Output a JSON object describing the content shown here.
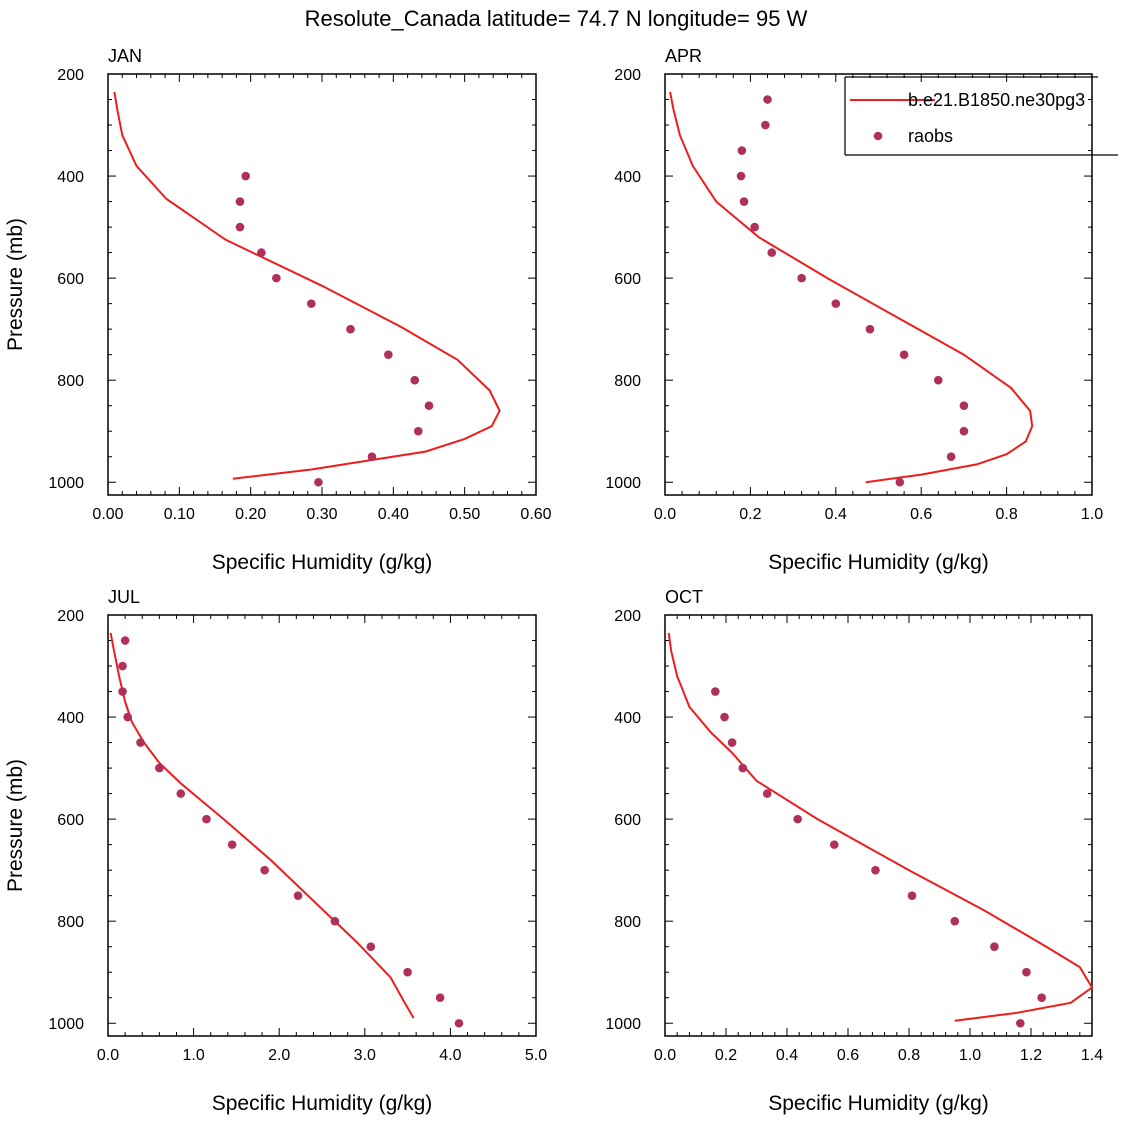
{
  "figure": {
    "title": "Resolute_Canada  latitude= 74.7 N longitude= 95 W"
  },
  "legend": {
    "model_label": "b.e21.B1850.ne30pg3",
    "obs_label": "raobs",
    "placement": "top-right (inside APR panel)"
  },
  "colors": {
    "model_line": "#ee1c1c",
    "obs_marker": "#b0305c",
    "axis": "#000000"
  },
  "chart_data": [
    {
      "type": "line",
      "panel_label": "JAN",
      "xlabel": "Specific Humidity (g/kg)",
      "ylabel": "Pressure (mb)",
      "xlim": [
        0,
        0.6
      ],
      "ylim": [
        200,
        1025
      ],
      "y_inverted": true,
      "xticks": [
        0,
        0.1,
        0.2,
        0.3,
        0.4,
        0.5,
        0.6
      ],
      "xtick_labels": [
        "0.00",
        "0.10",
        "0.20",
        "0.30",
        "0.40",
        "0.50",
        "0.60"
      ],
      "yticks": [
        200,
        400,
        600,
        800,
        1000
      ],
      "ytick_labels": [
        "200",
        "400",
        "600",
        "800",
        "1000"
      ],
      "series": [
        {
          "name": "b.e21.B1850.ne30pg3",
          "kind": "line",
          "x": [
            0.009,
            0.013,
            0.02,
            0.04,
            0.082,
            0.165,
            0.3,
            0.41,
            0.49,
            0.535,
            0.549,
            0.538,
            0.5,
            0.445,
            0.285,
            0.175
          ],
          "y": [
            235,
            270,
            320,
            380,
            445,
            525,
            615,
            695,
            760,
            820,
            860,
            890,
            915,
            940,
            975,
            993
          ]
        },
        {
          "name": "raobs",
          "kind": "scatter",
          "x": [
            0.193,
            0.185,
            0.185,
            0.215,
            0.236,
            0.285,
            0.34,
            0.393,
            0.43,
            0.45,
            0.435,
            0.37,
            0.295
          ],
          "y": [
            400,
            450,
            500,
            550,
            600,
            650,
            700,
            750,
            800,
            850,
            900,
            950,
            1000
          ]
        }
      ]
    },
    {
      "type": "line",
      "panel_label": "APR",
      "xlabel": "Specific Humidity (g/kg)",
      "ylabel": "",
      "xlim": [
        0,
        1.0
      ],
      "ylim": [
        200,
        1025
      ],
      "y_inverted": true,
      "xticks": [
        0,
        0.2,
        0.4,
        0.6,
        0.8,
        1.0
      ],
      "xtick_labels": [
        "0.0",
        "0.2",
        "0.4",
        "0.6",
        "0.8",
        "1.0"
      ],
      "yticks": [
        200,
        400,
        600,
        800,
        1000
      ],
      "ytick_labels": [
        "200",
        "400",
        "600",
        "800",
        "1000"
      ],
      "series": [
        {
          "name": "b.e21.B1850.ne30pg3",
          "kind": "line",
          "x": [
            0.012,
            0.02,
            0.035,
            0.065,
            0.12,
            0.22,
            0.38,
            0.55,
            0.7,
            0.81,
            0.855,
            0.86,
            0.845,
            0.8,
            0.73,
            0.6,
            0.47
          ],
          "y": [
            235,
            270,
            320,
            380,
            450,
            520,
            600,
            680,
            750,
            815,
            860,
            890,
            920,
            945,
            965,
            985,
            1000
          ]
        },
        {
          "name": "raobs",
          "kind": "scatter",
          "x": [
            0.24,
            0.235,
            0.18,
            0.178,
            0.185,
            0.21,
            0.25,
            0.32,
            0.4,
            0.48,
            0.56,
            0.64,
            0.7,
            0.7,
            0.67,
            0.55
          ],
          "y": [
            250,
            300,
            350,
            400,
            450,
            500,
            550,
            600,
            650,
            700,
            750,
            800,
            850,
            900,
            950,
            1000
          ]
        }
      ]
    },
    {
      "type": "line",
      "panel_label": "JUL",
      "xlabel": "Specific Humidity (g/kg)",
      "ylabel": "Pressure (mb)",
      "xlim": [
        0,
        5.0
      ],
      "ylim": [
        200,
        1025
      ],
      "y_inverted": true,
      "xticks": [
        0,
        1,
        2,
        3,
        4,
        5
      ],
      "xtick_labels": [
        "0.0",
        "1.0",
        "2.0",
        "3.0",
        "4.0",
        "5.0"
      ],
      "yticks": [
        200,
        400,
        600,
        800,
        1000
      ],
      "ytick_labels": [
        "200",
        "400",
        "600",
        "800",
        "1000"
      ],
      "series": [
        {
          "name": "b.e21.B1850.ne30pg3",
          "kind": "line",
          "x": [
            0.03,
            0.07,
            0.13,
            0.2,
            0.28,
            0.42,
            0.6,
            0.85,
            1.35,
            1.9,
            2.4,
            2.9,
            3.3,
            3.45,
            3.57
          ],
          "y": [
            235,
            270,
            320,
            370,
            410,
            450,
            490,
            530,
            600,
            680,
            760,
            840,
            910,
            955,
            990
          ]
        },
        {
          "name": "raobs",
          "kind": "scatter",
          "x": [
            0.2,
            0.17,
            0.17,
            0.23,
            0.38,
            0.6,
            0.85,
            1.15,
            1.45,
            1.83,
            2.22,
            2.65,
            3.07,
            3.5,
            3.88,
            4.1
          ],
          "y": [
            250,
            300,
            350,
            400,
            450,
            500,
            550,
            600,
            650,
            700,
            750,
            800,
            850,
            900,
            950,
            1000
          ]
        }
      ]
    },
    {
      "type": "line",
      "panel_label": "OCT",
      "xlabel": "Specific Humidity (g/kg)",
      "ylabel": "",
      "xlim": [
        0,
        1.4
      ],
      "ylim": [
        200,
        1025
      ],
      "y_inverted": true,
      "xticks": [
        0,
        0.2,
        0.4,
        0.6,
        0.8,
        1.0,
        1.2,
        1.4
      ],
      "xtick_labels": [
        "0.0",
        "0.2",
        "0.4",
        "0.6",
        "0.8",
        "1.0",
        "1.2",
        "1.4"
      ],
      "yticks": [
        200,
        400,
        600,
        800,
        1000
      ],
      "ytick_labels": [
        "200",
        "400",
        "600",
        "800",
        "1000"
      ],
      "series": [
        {
          "name": "b.e21.B1850.ne30pg3",
          "kind": "line",
          "x": [
            0.012,
            0.02,
            0.04,
            0.08,
            0.15,
            0.22,
            0.3,
            0.5,
            0.8,
            1.05,
            1.25,
            1.36,
            1.4,
            1.33,
            1.15,
            0.95
          ],
          "y": [
            235,
            270,
            320,
            380,
            430,
            470,
            525,
            600,
            700,
            780,
            850,
            890,
            930,
            960,
            980,
            995
          ]
        },
        {
          "name": "raobs",
          "kind": "scatter",
          "x": [
            0.165,
            0.195,
            0.22,
            0.255,
            0.335,
            0.435,
            0.555,
            0.69,
            0.81,
            0.95,
            1.08,
            1.185,
            1.235,
            1.165
          ],
          "y": [
            350,
            400,
            450,
            500,
            550,
            600,
            650,
            700,
            750,
            800,
            850,
            900,
            950,
            1000
          ]
        }
      ]
    }
  ]
}
